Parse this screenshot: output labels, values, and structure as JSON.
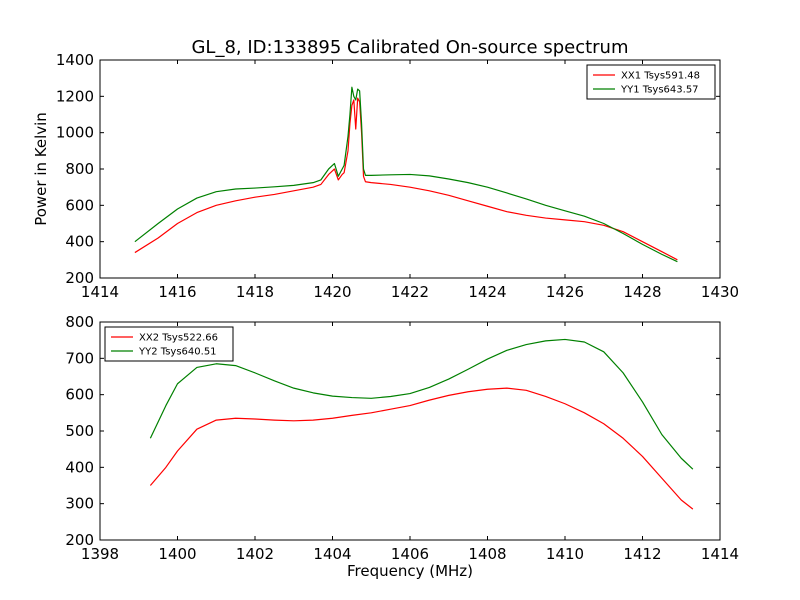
{
  "title": "GL_8, ID:133895 Calibrated On-source spectrum",
  "chart_data": [
    {
      "type": "line",
      "xlabel": "",
      "ylabel": "Power in Kelvin",
      "xlim": [
        1414,
        1430
      ],
      "ylim": [
        200,
        1400
      ],
      "xticks": [
        1414,
        1416,
        1418,
        1420,
        1422,
        1424,
        1426,
        1428,
        1430
      ],
      "yticks": [
        200,
        400,
        600,
        800,
        1000,
        1200,
        1400
      ],
      "legend_position": "top-right",
      "series": [
        {
          "name": "XX1 Tsys591.48",
          "color": "#ff0000",
          "x": [
            1414.9,
            1415.5,
            1416.0,
            1416.5,
            1417.0,
            1417.5,
            1418.0,
            1418.5,
            1419.0,
            1419.5,
            1419.7,
            1419.9,
            1420.0,
            1420.05,
            1420.15,
            1420.25,
            1420.3,
            1420.4,
            1420.45,
            1420.5,
            1420.55,
            1420.6,
            1420.65,
            1420.7,
            1420.75,
            1420.8,
            1420.85,
            1421.0,
            1421.5,
            1422.0,
            1422.5,
            1423.0,
            1423.5,
            1424.0,
            1424.5,
            1425.0,
            1425.5,
            1426.0,
            1426.5,
            1427.0,
            1427.5,
            1428.0,
            1428.5,
            1428.9
          ],
          "values": [
            340,
            420,
            500,
            560,
            600,
            625,
            645,
            660,
            680,
            700,
            715,
            770,
            790,
            800,
            740,
            770,
            780,
            900,
            1050,
            1150,
            1180,
            1020,
            1190,
            1170,
            1000,
            760,
            730,
            725,
            715,
            700,
            680,
            655,
            625,
            595,
            565,
            545,
            530,
            520,
            510,
            490,
            455,
            400,
            345,
            300
          ]
        },
        {
          "name": "YY1 Tsys643.57",
          "color": "#008000",
          "x": [
            1414.9,
            1415.5,
            1416.0,
            1416.5,
            1417.0,
            1417.5,
            1418.0,
            1418.5,
            1419.0,
            1419.5,
            1419.7,
            1419.9,
            1420.0,
            1420.05,
            1420.15,
            1420.25,
            1420.3,
            1420.4,
            1420.45,
            1420.5,
            1420.55,
            1420.6,
            1420.65,
            1420.7,
            1420.75,
            1420.8,
            1420.85,
            1421.0,
            1421.5,
            1422.0,
            1422.5,
            1423.0,
            1423.5,
            1424.0,
            1424.5,
            1425.0,
            1425.5,
            1426.0,
            1426.5,
            1427.0,
            1427.5,
            1428.0,
            1428.5,
            1428.9
          ],
          "values": [
            400,
            500,
            580,
            640,
            675,
            690,
            695,
            702,
            710,
            725,
            740,
            800,
            820,
            830,
            760,
            800,
            820,
            980,
            1100,
            1250,
            1200,
            1180,
            1240,
            1230,
            1050,
            800,
            765,
            765,
            768,
            770,
            762,
            745,
            725,
            700,
            668,
            635,
            600,
            570,
            540,
            500,
            445,
            385,
            330,
            290
          ]
        }
      ]
    },
    {
      "type": "line",
      "xlabel": "Frequency (MHz)",
      "ylabel": "",
      "xlim": [
        1398,
        1414
      ],
      "ylim": [
        200,
        800
      ],
      "xticks": [
        1398,
        1400,
        1402,
        1404,
        1406,
        1408,
        1410,
        1412,
        1414
      ],
      "yticks": [
        200,
        300,
        400,
        500,
        600,
        700,
        800
      ],
      "legend_position": "top-left",
      "series": [
        {
          "name": "XX2 Tsys522.66",
          "color": "#ff0000",
          "x": [
            1399.3,
            1399.7,
            1400.0,
            1400.5,
            1401.0,
            1401.5,
            1402.0,
            1402.5,
            1403.0,
            1403.5,
            1404.0,
            1404.5,
            1405.0,
            1405.5,
            1406.0,
            1406.5,
            1407.0,
            1407.5,
            1408.0,
            1408.5,
            1409.0,
            1409.5,
            1410.0,
            1410.5,
            1411.0,
            1411.5,
            1412.0,
            1412.5,
            1413.0,
            1413.3
          ],
          "values": [
            350,
            400,
            445,
            505,
            530,
            535,
            533,
            530,
            528,
            530,
            535,
            543,
            550,
            560,
            570,
            585,
            598,
            608,
            615,
            618,
            612,
            595,
            575,
            550,
            520,
            480,
            430,
            370,
            310,
            285
          ]
        },
        {
          "name": "YY2 Tsys640.51",
          "color": "#008000",
          "x": [
            1399.3,
            1399.7,
            1400.0,
            1400.5,
            1401.0,
            1401.5,
            1402.0,
            1402.5,
            1403.0,
            1403.5,
            1404.0,
            1404.5,
            1405.0,
            1405.5,
            1406.0,
            1406.5,
            1407.0,
            1407.5,
            1408.0,
            1408.5,
            1409.0,
            1409.5,
            1410.0,
            1410.5,
            1411.0,
            1411.5,
            1412.0,
            1412.5,
            1413.0,
            1413.3
          ],
          "values": [
            480,
            570,
            630,
            675,
            685,
            680,
            660,
            638,
            618,
            605,
            596,
            592,
            590,
            595,
            603,
            620,
            643,
            670,
            698,
            722,
            738,
            748,
            752,
            745,
            718,
            660,
            580,
            490,
            425,
            395
          ]
        }
      ]
    }
  ]
}
